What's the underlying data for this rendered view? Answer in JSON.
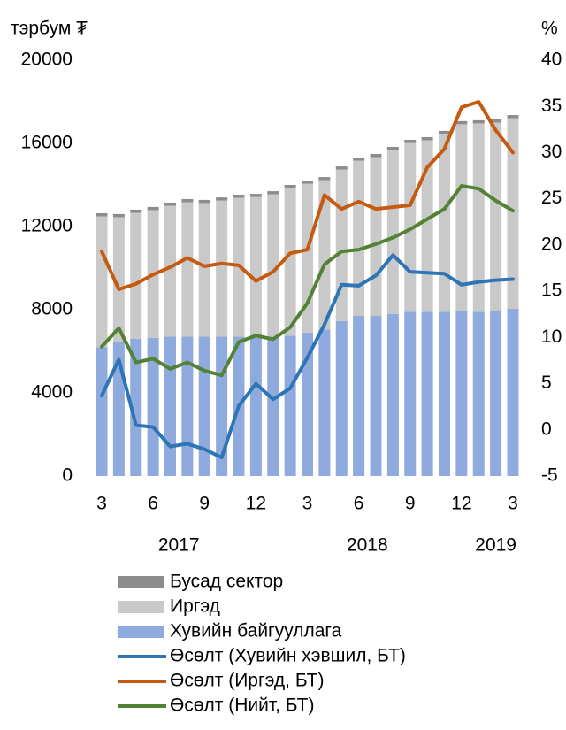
{
  "chart_data": {
    "type": "bar_line",
    "y_label": "тэрбум ₮",
    "y2_label": "%",
    "categories": [
      "3",
      null,
      null,
      "6",
      null,
      null,
      "9",
      null,
      null,
      "12",
      null,
      null,
      "3",
      null,
      null,
      "6",
      null,
      null,
      "9",
      null,
      null,
      "12",
      null,
      null,
      "3"
    ],
    "x_groups": [
      {
        "label": "2017",
        "start": 0,
        "end": 9
      },
      {
        "label": "2018",
        "start": 10,
        "end": 21
      },
      {
        "label": "2019",
        "start": 22,
        "end": 24
      }
    ],
    "ylim": [
      0,
      20000
    ],
    "yticks": [
      0,
      4000,
      8000,
      12000,
      16000,
      20000
    ],
    "y2lim": [
      -5,
      40
    ],
    "y2ticks": [
      -5,
      0,
      5,
      10,
      15,
      20,
      25,
      30,
      35,
      40
    ],
    "series": [
      {
        "name": "Бусад сектор",
        "kind": "bar",
        "color": "#8c8c8c",
        "values": [
          150,
          150,
          150,
          150,
          150,
          150,
          150,
          150,
          150,
          150,
          150,
          150,
          150,
          150,
          150,
          150,
          150,
          150,
          150,
          150,
          150,
          150,
          150,
          150,
          150
        ]
      },
      {
        "name": "Иргэд",
        "kind": "bar",
        "color": "#c9c9c9",
        "values": [
          6290,
          6000,
          6060,
          6140,
          6300,
          6470,
          6430,
          6550,
          6680,
          6770,
          6850,
          7100,
          7160,
          7180,
          7290,
          7470,
          7640,
          7880,
          8120,
          8250,
          8550,
          8970,
          9060,
          9050,
          9160
        ]
      },
      {
        "name": "Хувийн байгууллага",
        "kind": "bar",
        "color": "#8faadc",
        "values": [
          6200,
          6450,
          6600,
          6650,
          6700,
          6700,
          6700,
          6700,
          6700,
          6650,
          6700,
          6750,
          6900,
          7050,
          7450,
          7700,
          7700,
          7800,
          7900,
          7900,
          7900,
          7950,
          7900,
          7950,
          8050
        ]
      },
      {
        "name": "Өсөлт (Хувийн хэвшил, БТ)",
        "kind": "line",
        "axis": "y2",
        "color": "#2e75b6",
        "values": [
          3.7,
          7.6,
          0.5,
          0.3,
          -1.8,
          -1.5,
          -2.1,
          -3.0,
          2.6,
          5.0,
          3.3,
          4.5,
          7.8,
          11.4,
          15.7,
          15.6,
          16.7,
          18.9,
          17.1,
          17.0,
          16.9,
          15.7,
          16.0,
          16.2,
          16.3
        ]
      },
      {
        "name": "Өсөлт (Иргэд, БТ)",
        "kind": "line",
        "axis": "y2",
        "color": "#c55a11",
        "values": [
          19.3,
          15.2,
          15.8,
          16.8,
          17.6,
          18.6,
          17.7,
          18.0,
          17.8,
          16.1,
          17.1,
          19.1,
          19.5,
          25.4,
          23.9,
          24.7,
          23.9,
          24.1,
          24.3,
          28.4,
          30.4,
          34.9,
          35.5,
          32.4,
          30.0
        ]
      },
      {
        "name": "Өсөлт (Нийт, БТ)",
        "kind": "line",
        "axis": "y2",
        "color": "#548235",
        "values": [
          9.0,
          11.0,
          7.3,
          7.7,
          6.6,
          7.3,
          6.4,
          5.9,
          9.5,
          10.2,
          9.8,
          11.1,
          13.7,
          17.9,
          19.3,
          19.5,
          20.1,
          20.8,
          21.7,
          22.8,
          23.9,
          26.4,
          26.1,
          24.8,
          23.7
        ]
      }
    ]
  }
}
